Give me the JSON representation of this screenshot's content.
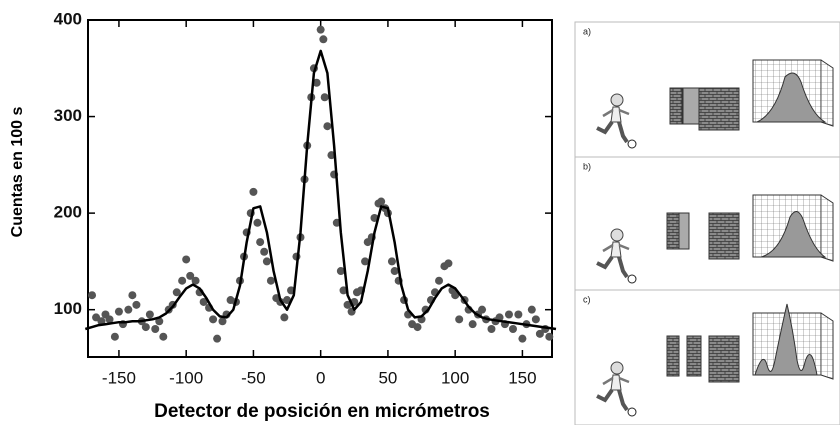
{
  "chart_data": {
    "type": "scatter",
    "xlabel": "Detector de posición en micrómetros",
    "ylabel": "Cuentas en 100 s",
    "xlim": [
      -173,
      172
    ],
    "ylim": [
      51,
      400
    ],
    "xticks": [
      -150,
      -100,
      -50,
      0,
      50,
      100,
      150
    ],
    "yticks": [
      100,
      200,
      300,
      400
    ],
    "grid": false,
    "scatter": {
      "color": "#555555",
      "x": [
        -170,
        -167,
        -163,
        -160,
        -157,
        -153,
        -150,
        -147,
        -143,
        -140,
        -137,
        -133,
        -130,
        -127,
        -123,
        -120,
        -117,
        -113,
        -110,
        -107,
        -103,
        -100,
        -97,
        -93,
        -90,
        -87,
        -83,
        -80,
        -77,
        -73,
        -70,
        -67,
        -63,
        -60,
        -57,
        -55,
        -52,
        -50,
        -47,
        -45,
        -42,
        -40,
        -37,
        -33,
        -30,
        -27,
        -25,
        -22,
        -18,
        -15,
        -12,
        -10,
        -7,
        -5,
        -3,
        0,
        2,
        3,
        5,
        8,
        10,
        12,
        15,
        17,
        20,
        23,
        25,
        27,
        30,
        33,
        35,
        38,
        40,
        43,
        45,
        48,
        50,
        53,
        55,
        58,
        62,
        65,
        68,
        72,
        75,
        78,
        82,
        85,
        88,
        92,
        95,
        98,
        100,
        103,
        107,
        110,
        113,
        117,
        120,
        123,
        127,
        130,
        133,
        137,
        140,
        143,
        147,
        150,
        153,
        157,
        160,
        163,
        167,
        170
      ],
      "y": [
        115,
        92,
        88,
        95,
        90,
        72,
        98,
        85,
        100,
        115,
        105,
        88,
        82,
        95,
        80,
        88,
        72,
        100,
        105,
        118,
        130,
        152,
        135,
        130,
        118,
        108,
        102,
        90,
        70,
        88,
        95,
        110,
        108,
        130,
        155,
        180,
        200,
        222,
        190,
        170,
        160,
        150,
        130,
        112,
        108,
        92,
        110,
        120,
        155,
        175,
        235,
        270,
        320,
        350,
        335,
        390,
        380,
        320,
        290,
        260,
        240,
        190,
        140,
        120,
        105,
        98,
        108,
        118,
        120,
        150,
        170,
        175,
        195,
        210,
        212,
        205,
        200,
        150,
        140,
        130,
        110,
        95,
        85,
        82,
        90,
        100,
        110,
        118,
        130,
        145,
        148,
        120,
        115,
        90,
        110,
        100,
        85,
        95,
        100,
        90,
        80,
        88,
        92,
        85,
        95,
        80,
        95,
        70,
        85,
        100,
        90,
        75,
        80,
        72
      ]
    },
    "fit": {
      "color": "#000000",
      "x": [
        -175,
        -170,
        -165,
        -160,
        -155,
        -150,
        -145,
        -140,
        -135,
        -130,
        -125,
        -120,
        -115,
        -110,
        -105,
        -100,
        -95,
        -90,
        -85,
        -80,
        -75,
        -70,
        -65,
        -60,
        -55,
        -50,
        -45,
        -40,
        -35,
        -30,
        -25,
        -20,
        -15,
        -10,
        -5,
        0,
        5,
        10,
        15,
        20,
        25,
        30,
        35,
        40,
        45,
        50,
        55,
        60,
        65,
        70,
        75,
        80,
        85,
        90,
        95,
        100,
        105,
        110,
        115,
        120,
        125,
        130,
        135,
        140,
        145,
        150,
        155,
        160,
        165,
        170,
        175
      ],
      "y": [
        80,
        82,
        84,
        85,
        86,
        87,
        87,
        88,
        88,
        89,
        90,
        92,
        96,
        103,
        113,
        122,
        126,
        122,
        112,
        100,
        93,
        92,
        100,
        125,
        170,
        205,
        207,
        180,
        140,
        110,
        100,
        115,
        180,
        270,
        345,
        368,
        345,
        270,
        180,
        115,
        100,
        108,
        140,
        180,
        207,
        205,
        170,
        125,
        100,
        92,
        93,
        100,
        112,
        122,
        126,
        122,
        113,
        103,
        96,
        92,
        90,
        89,
        88,
        87,
        86,
        85,
        84,
        83,
        82,
        81,
        80
      ]
    }
  },
  "diagram": {
    "panels": [
      {
        "label": "a)"
      },
      {
        "label": "b)"
      },
      {
        "label": "c)"
      }
    ]
  }
}
